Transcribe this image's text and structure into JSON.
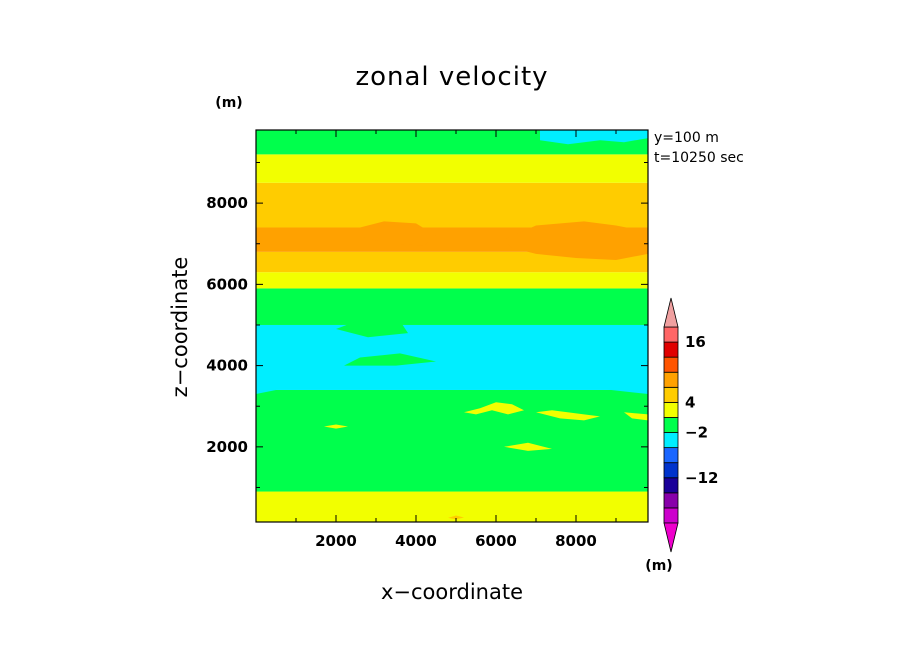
{
  "chart_data": {
    "type": "heatmap",
    "title": "zonal velocity",
    "xlabel": "x−coordinate",
    "ylabel": "z−coordinate",
    "x_unit": "(m)",
    "y_unit": "(m)",
    "annotations": [
      "y=100  m",
      "t=10250 sec"
    ],
    "xlim": [
      0,
      9800
    ],
    "ylim": [
      150,
      9800
    ],
    "x_ticks": [
      2000,
      4000,
      6000,
      8000
    ],
    "x_tick_labels": [
      "2000",
      "4000",
      "6000",
      "8000"
    ],
    "y_ticks": [
      2000,
      4000,
      6000,
      8000
    ],
    "y_tick_labels": [
      "2000",
      "4000",
      "6000",
      "8000"
    ],
    "level_colors": {
      "cyan": "#00eeff",
      "green": "#00ff4c",
      "yellow": "#f2ff00",
      "gold": "#ffcc00",
      "orange": "#ffa100"
    },
    "bands": [
      {
        "level": "yellow",
        "z_top": 900
      },
      {
        "level": "green",
        "z_top": 3400
      },
      {
        "level": "cyan",
        "z_top": 5000
      },
      {
        "level": "green",
        "z_top": 5900
      },
      {
        "level": "yellow",
        "z_top": 6300
      },
      {
        "level": "gold",
        "z_top": 6800
      },
      {
        "level": "orange",
        "z_top": 7400
      },
      {
        "level": "gold",
        "z_top": 8500
      },
      {
        "level": "yellow",
        "z_top": 9200
      },
      {
        "level": "green",
        "z_top": 9800
      }
    ],
    "patches": [
      {
        "level": "orange",
        "points": [
          [
            6200,
            7100
          ],
          [
            7000,
            7450
          ],
          [
            8200,
            7550
          ],
          [
            9000,
            7450
          ],
          [
            9800,
            7300
          ],
          [
            9800,
            6750
          ],
          [
            9000,
            6600
          ],
          [
            8000,
            6650
          ],
          [
            7000,
            6750
          ],
          [
            6400,
            6900
          ]
        ]
      },
      {
        "level": "orange",
        "points": [
          [
            2600,
            7400
          ],
          [
            3200,
            7550
          ],
          [
            4000,
            7500
          ],
          [
            4500,
            7200
          ],
          [
            4200,
            6950
          ],
          [
            3400,
            7000
          ],
          [
            2700,
            7150
          ]
        ]
      },
      {
        "level": "cyan",
        "points": [
          [
            7100,
            9800
          ],
          [
            7100,
            9550
          ],
          [
            7800,
            9450
          ],
          [
            8600,
            9550
          ],
          [
            9200,
            9500
          ],
          [
            9800,
            9600
          ],
          [
            9800,
            9800
          ]
        ]
      },
      {
        "level": "cyan",
        "points": [
          [
            5900,
            3700
          ],
          [
            6400,
            3450
          ],
          [
            7200,
            3500
          ],
          [
            7800,
            3550
          ],
          [
            8400,
            3450
          ],
          [
            9800,
            3300
          ],
          [
            9800,
            3600
          ],
          [
            8600,
            3700
          ],
          [
            7600,
            3700
          ],
          [
            6700,
            3800
          ]
        ]
      },
      {
        "level": "cyan",
        "points": [
          [
            0,
            3900
          ],
          [
            300,
            3800
          ],
          [
            500,
            3400
          ],
          [
            0,
            3300
          ]
        ]
      },
      {
        "level": "green",
        "points": [
          [
            2000,
            4900
          ],
          [
            2800,
            5200
          ],
          [
            3600,
            5100
          ],
          [
            3800,
            4800
          ],
          [
            2800,
            4700
          ]
        ]
      },
      {
        "level": "green",
        "points": [
          [
            2200,
            4000
          ],
          [
            3500,
            4000
          ],
          [
            4500,
            4100
          ],
          [
            3600,
            4300
          ],
          [
            2600,
            4200
          ]
        ]
      },
      {
        "level": "yellow",
        "points": [
          [
            5200,
            2850
          ],
          [
            5600,
            2950
          ],
          [
            6000,
            3100
          ],
          [
            6400,
            3050
          ],
          [
            6700,
            2900
          ],
          [
            6300,
            2800
          ],
          [
            5900,
            2900
          ],
          [
            5500,
            2800
          ]
        ]
      },
      {
        "level": "yellow",
        "points": [
          [
            7000,
            2850
          ],
          [
            7400,
            2900
          ],
          [
            8200,
            2800
          ],
          [
            8600,
            2750
          ],
          [
            8200,
            2650
          ],
          [
            7600,
            2700
          ]
        ]
      },
      {
        "level": "yellow",
        "points": [
          [
            9200,
            2850
          ],
          [
            9800,
            2800
          ],
          [
            9800,
            2650
          ],
          [
            9400,
            2700
          ]
        ]
      },
      {
        "level": "yellow",
        "points": [
          [
            6200,
            2000
          ],
          [
            6800,
            2100
          ],
          [
            7400,
            1950
          ],
          [
            6800,
            1900
          ]
        ]
      },
      {
        "level": "yellow",
        "points": [
          [
            1700,
            2500
          ],
          [
            2000,
            2550
          ],
          [
            2300,
            2500
          ],
          [
            2000,
            2450
          ]
        ]
      },
      {
        "level": "gold",
        "points": [
          [
            4800,
            250
          ],
          [
            5000,
            310
          ],
          [
            5200,
            260
          ],
          [
            5000,
            220
          ]
        ]
      }
    ]
  },
  "colorbar": {
    "colors": [
      "#cc00cc",
      "#8800aa",
      "#1a0099",
      "#0033cc",
      "#1a66ff",
      "#00eeff",
      "#00ff4c",
      "#f2ff00",
      "#ffcc00",
      "#ffa100",
      "#ff5500",
      "#e00000",
      "#ff6666"
    ],
    "top_arrow_color": "#f0a0a0",
    "bottom_arrow_color": "#ee00cc",
    "labels": [
      {
        "text": "16",
        "boundary": 12
      },
      {
        "text": "4",
        "boundary": 8
      },
      {
        "text": "−2",
        "boundary": 6
      },
      {
        "text": "−12",
        "boundary": 3
      }
    ],
    "unit": "(m)"
  }
}
